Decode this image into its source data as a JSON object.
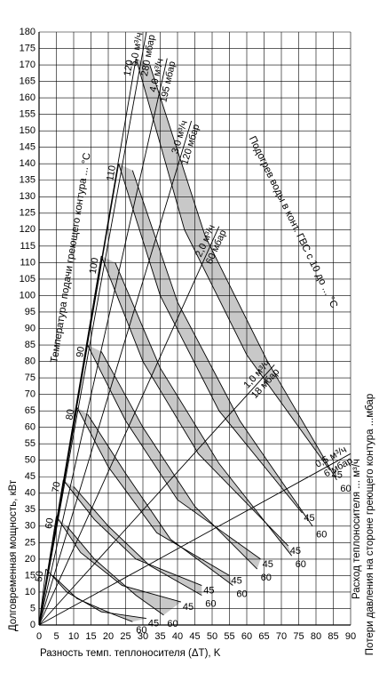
{
  "chart_data": {
    "type": "nomogram",
    "xlabel": "Разность темп. теплоносителя (ΔT), K",
    "ylabel": "Долговременная мощность, кВт",
    "right_labels": [
      "Расход теплоносителя ... м³/ч",
      "Потери давления на стороне греющего контура ...мбар"
    ],
    "annotations": [
      "Температура подачи греющего контура ... °C",
      "Подогрев воды в конт. ГВС с 10 до ... °C"
    ],
    "xlim": [
      0,
      90
    ],
    "ylim": [
      0,
      180
    ],
    "xticks": [
      0,
      5,
      10,
      15,
      20,
      25,
      30,
      35,
      40,
      45,
      50,
      55,
      60,
      65,
      70,
      75,
      80,
      85,
      90
    ],
    "yticks": [
      0,
      5,
      10,
      15,
      20,
      25,
      30,
      35,
      40,
      45,
      50,
      55,
      60,
      65,
      70,
      75,
      80,
      85,
      90,
      95,
      100,
      105,
      110,
      115,
      120,
      125,
      130,
      135,
      140,
      145,
      150,
      155,
      160,
      165,
      170,
      175,
      180
    ],
    "grid": true,
    "line_color": "#000000",
    "band_color": "#c8c8c8",
    "flow_lines": [
      {
        "flow": "5,0 м³/ч",
        "pressure": "280 мбар",
        "x": [
          0,
          31
        ],
        "y": [
          0,
          180
        ]
      },
      {
        "flow": "4,0 м³/ч",
        "pressure": "195 мбар",
        "x": [
          0,
          37
        ],
        "y": [
          0,
          172
        ]
      },
      {
        "flow": "3,0 м³/ч",
        "pressure": "120 мбар",
        "x": [
          0,
          44
        ],
        "y": [
          0,
          153
        ]
      },
      {
        "flow": "2,0 м³/ч",
        "pressure": "60 мбар",
        "x": [
          0,
          52
        ],
        "y": [
          0,
          121
        ]
      },
      {
        "flow": "1,0 м³/ч",
        "pressure": "18 мбар",
        "x": [
          0,
          68
        ],
        "y": [
          0,
          79
        ]
      },
      {
        "flow": "0,5 м³/ч",
        "pressure": "6 мбар",
        "x": [
          0,
          90
        ],
        "y": [
          0,
          52
        ]
      }
    ],
    "temperature_bands": [
      {
        "label": "120",
        "line": {
          "x": [
            0,
            28
          ],
          "y": [
            0,
            172
          ]
        },
        "curves": [
          {
            "label": "45",
            "x": [
              28,
              42,
              60,
              84
            ],
            "y": [
              172,
              120,
              82,
              47
            ]
          },
          {
            "label": "60",
            "x": [
              32,
              48,
              66,
              86
            ],
            "y": [
              170,
              118,
              80,
              44
            ]
          }
        ]
      },
      {
        "label": "110",
        "line": {
          "x": [
            0,
            23
          ],
          "y": [
            0,
            140
          ]
        },
        "curves": [
          {
            "label": "45",
            "x": [
              23,
              35,
              52,
              76
            ],
            "y": [
              140,
              100,
              65,
              34
            ]
          },
          {
            "label": "60",
            "x": [
              27,
              40,
              58,
              79
            ],
            "y": [
              138,
              98,
              62,
              30
            ]
          }
        ]
      },
      {
        "label": "100",
        "line": {
          "x": [
            0,
            18
          ],
          "y": [
            0,
            112
          ]
        },
        "curves": [
          {
            "label": "45",
            "x": [
              18,
              30,
              46,
              72
            ],
            "y": [
              112,
              80,
              52,
              24
            ]
          },
          {
            "label": "60",
            "x": [
              22,
              35,
              52,
              73
            ],
            "y": [
              110,
              78,
              49,
              21
            ]
          }
        ]
      },
      {
        "label": "90",
        "line": {
          "x": [
            0,
            14
          ],
          "y": [
            0,
            85
          ]
        },
        "curves": [
          {
            "label": "45",
            "x": [
              14,
              25,
              40,
              64
            ],
            "y": [
              85,
              62,
              38,
              20
            ]
          },
          {
            "label": "60",
            "x": [
              18,
              30,
              45,
              63
            ],
            "y": [
              83,
              60,
              36,
              17
            ]
          }
        ]
      },
      {
        "label": "80",
        "line": {
          "x": [
            0,
            11
          ],
          "y": [
            0,
            66
          ]
        },
        "curves": [
          {
            "label": "45",
            "x": [
              11,
              20,
              34,
              55
            ],
            "y": [
              66,
              48,
              28,
              15
            ]
          },
          {
            "label": "60",
            "x": [
              14,
              25,
              38,
              56
            ],
            "y": [
              64,
              46,
              26,
              12
            ]
          }
        ]
      },
      {
        "label": "70",
        "line": {
          "x": [
            0,
            7
          ],
          "y": [
            0,
            44
          ]
        },
        "curves": [
          {
            "label": "45",
            "x": [
              7,
              16,
              28,
              47
            ],
            "y": [
              44,
              32,
              20,
              12
            ]
          },
          {
            "label": "60",
            "x": [
              10,
              20,
              32,
              47
            ],
            "y": [
              42,
              30,
              18,
              9
            ]
          }
        ]
      },
      {
        "label": "60",
        "line": {
          "x": [
            0,
            5
          ],
          "y": [
            0,
            33
          ]
        },
        "curves": [
          {
            "label": "45",
            "x": [
              5,
              12,
              24,
              41
            ],
            "y": [
              33,
              22,
              12,
              7
            ]
          },
          {
            "label": "60",
            "x": [
              8,
              16,
              28,
              36
            ],
            "y": [
              30,
              20,
              9,
              3
            ]
          }
        ]
      },
      {
        "label": "50",
        "line": {
          "x": [
            0,
            2
          ],
          "y": [
            0,
            17
          ]
        },
        "curves": [
          {
            "label": "45",
            "x": [
              2,
              8,
              18,
              31
            ],
            "y": [
              17,
              10,
              4,
              2
            ]
          },
          {
            "label": "60",
            "x": [
              4,
              11,
              22,
              27
            ],
            "y": [
              15,
              8,
              3,
              1
            ]
          }
        ]
      }
    ]
  }
}
